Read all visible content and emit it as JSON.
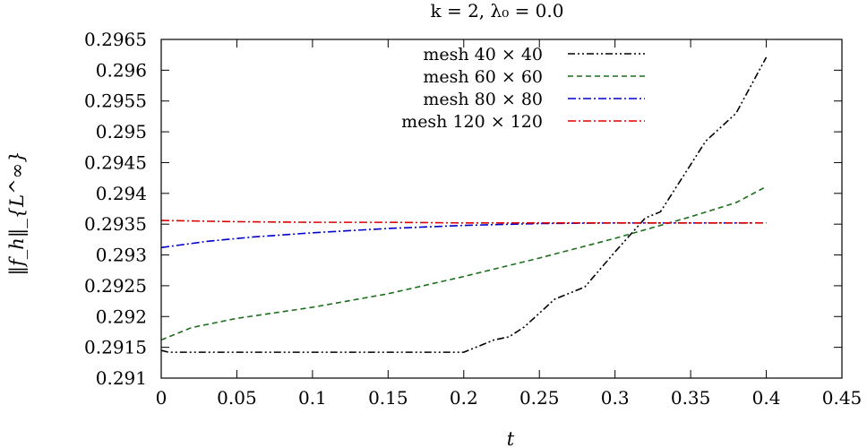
{
  "chart_data": {
    "type": "line",
    "title": "k = 2, λ₀ = 0.0",
    "xlabel": "t",
    "ylabel": "‖f_h‖_{L^∞}",
    "xlim": [
      0,
      0.45
    ],
    "ylim": [
      0.291,
      0.2965
    ],
    "xticks": [
      "0",
      "0.05",
      "0.1",
      "0.15",
      "0.2",
      "0.25",
      "0.3",
      "0.35",
      "0.4",
      "0.45"
    ],
    "yticks": [
      "0.291",
      "0.2915",
      "0.292",
      "0.2925",
      "0.293",
      "0.2935",
      "0.294",
      "0.2945",
      "0.295",
      "0.2955",
      "0.296",
      "0.2965"
    ],
    "legend_position": "top-center",
    "series": [
      {
        "name": "mesh 40 × 40",
        "color": "#000000",
        "dash": "dash-dot-dot",
        "x": [
          0,
          0.005,
          0.05,
          0.1,
          0.15,
          0.2,
          0.22,
          0.23,
          0.24,
          0.26,
          0.28,
          0.3,
          0.32,
          0.33,
          0.36,
          0.38,
          0.4
        ],
        "y": [
          0.29145,
          0.29142,
          0.29142,
          0.29142,
          0.29142,
          0.29142,
          0.29162,
          0.29167,
          0.29183,
          0.29228,
          0.29248,
          0.29305,
          0.2936,
          0.2937,
          0.29485,
          0.2953,
          0.29621
        ]
      },
      {
        "name": "mesh 60 × 60",
        "color": "#1b6e1b",
        "dash": "dashed",
        "x": [
          0,
          0.02,
          0.05,
          0.1,
          0.15,
          0.2,
          0.25,
          0.3,
          0.35,
          0.38,
          0.4
        ],
        "y": [
          0.29162,
          0.29182,
          0.29197,
          0.29215,
          0.29237,
          0.29265,
          0.29295,
          0.29327,
          0.29362,
          0.29385,
          0.29411
        ]
      },
      {
        "name": "mesh 80 × 80",
        "color": "#0000cc",
        "dash": "dash-dot",
        "x": [
          0,
          0.03,
          0.06,
          0.1,
          0.15,
          0.2,
          0.25,
          0.3,
          0.35,
          0.39
        ],
        "y": [
          0.29312,
          0.29322,
          0.29329,
          0.29336,
          0.29343,
          0.29348,
          0.29351,
          0.29352,
          0.29352,
          0.29352
        ]
      },
      {
        "name": "mesh 120 × 120",
        "color": "#dd0000",
        "dash": "dash-dot",
        "x": [
          0,
          0.05,
          0.1,
          0.15,
          0.2,
          0.3,
          0.4
        ],
        "y": [
          0.29356,
          0.29354,
          0.29353,
          0.29353,
          0.29352,
          0.29352,
          0.29352
        ]
      }
    ]
  }
}
